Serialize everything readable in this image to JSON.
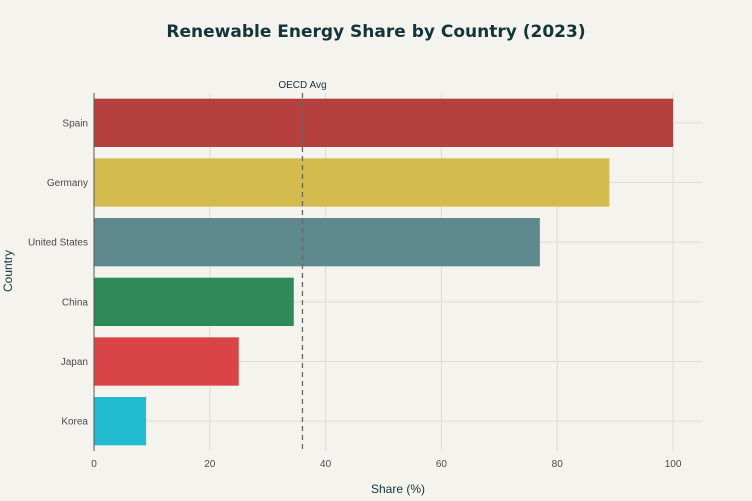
{
  "chart_data": {
    "type": "bar",
    "orientation": "horizontal",
    "title": "Renewable Energy Share by Country (2023)",
    "xlabel": "Share (%)",
    "ylabel": "Country",
    "categories": [
      "Spain",
      "Germany",
      "United States",
      "China",
      "Japan",
      "Korea"
    ],
    "values": [
      100,
      89,
      77,
      34.5,
      25,
      9
    ],
    "colors": [
      "#b5403e",
      "#d3bb4e",
      "#5e8a8e",
      "#2e8b57",
      "#d94446",
      "#22bcd0"
    ],
    "xlim": [
      0,
      105
    ],
    "xticks": [
      0,
      20,
      40,
      60,
      80,
      100
    ],
    "grid": true,
    "reference_line": {
      "label": "OECD Avg",
      "value": 36
    }
  }
}
